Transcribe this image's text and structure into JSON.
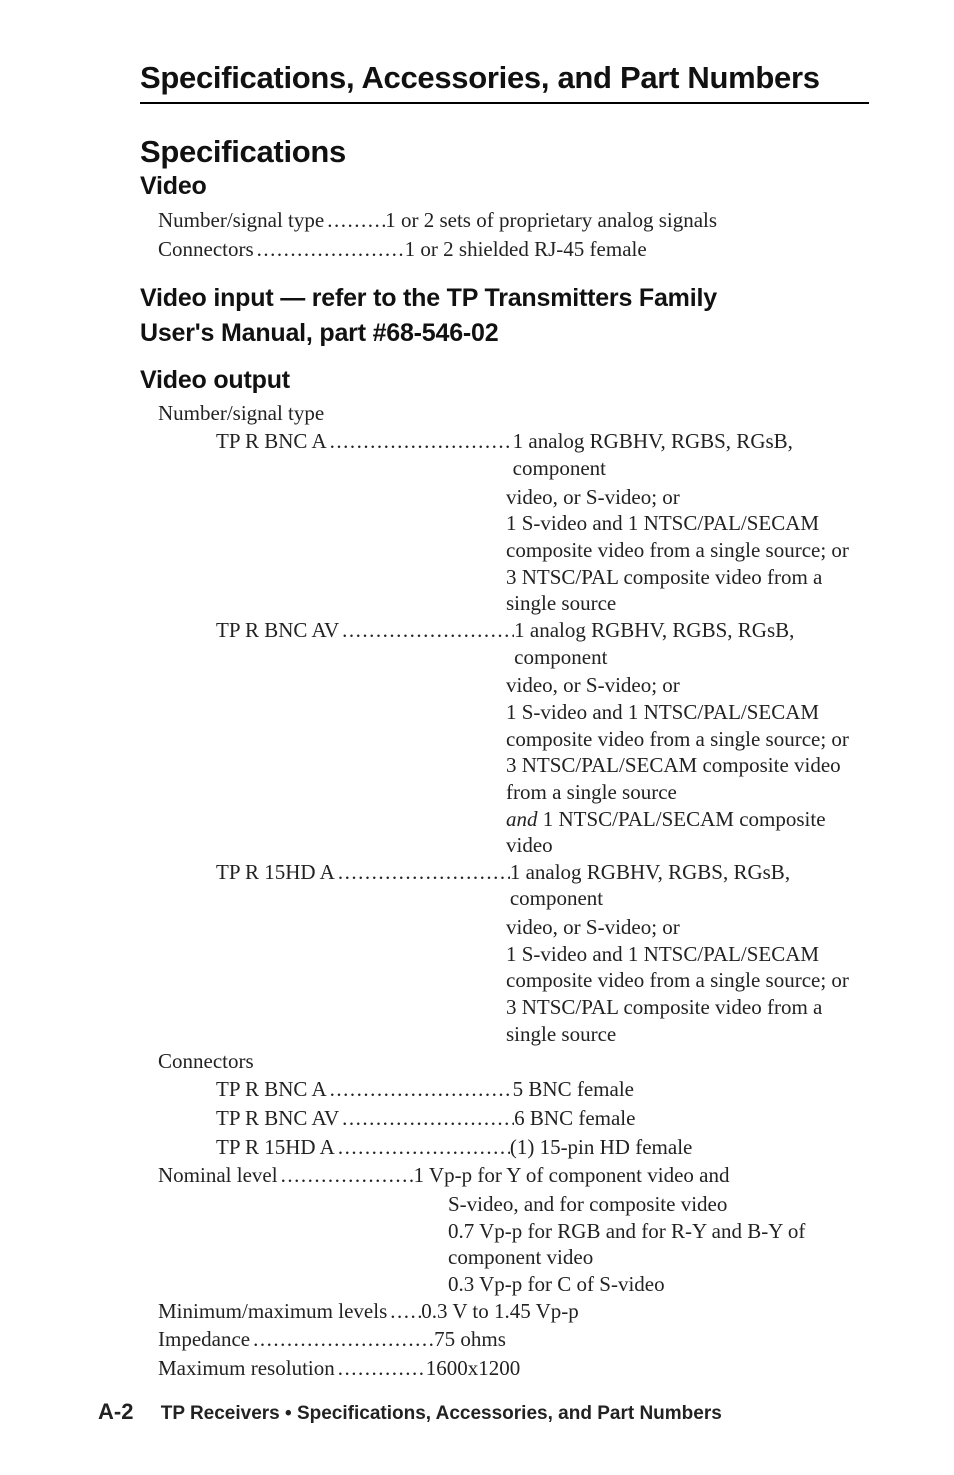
{
  "headings": {
    "top": "Specifications, Accessories, and Part Numbers",
    "spec": "Specifications",
    "video": "Video",
    "videoInputLine1": "Video input — refer to the TP Transmitters Family",
    "videoInputLine2": "User's Manual, part #68-546-02",
    "videoOutput": "Video output"
  },
  "videoRows": {
    "numberSignal": {
      "label": "Number/signal type",
      "value": "1 or 2 sets of proprietary analog signals"
    },
    "connectors": {
      "label": "Connectors",
      "value": "1 or 2 shielded RJ-45 female"
    }
  },
  "videoOutput": {
    "numberSignalHead": "Number/signal type",
    "items": [
      {
        "label": "TP R BNC A",
        "lines": [
          "1 analog RGBHV, RGBS, RGsB, component",
          "video, or S-video; or",
          "1 S-video and 1 NTSC/PAL/SECAM",
          "composite video from a single source; or",
          "3 NTSC/PAL composite video from a",
          "single source"
        ]
      },
      {
        "label": "TP R BNC AV",
        "lines": [
          "1 analog RGBHV, RGBS, RGsB, component",
          "video, or S-video; or",
          "1 S-video and 1 NTSC/PAL/SECAM",
          "composite video from a single source; or",
          "3 NTSC/PAL/SECAM composite video",
          "from a single source",
          "and 1 NTSC/PAL/SECAM composite",
          "video"
        ],
        "italicWord": "and"
      },
      {
        "label": "TP R 15HD A",
        "lines": [
          "1 analog RGBHV, RGBS, RGsB, component",
          "video, or S-video; or",
          "1 S-video and 1 NTSC/PAL/SECAM",
          "composite video from a single source; or",
          "3 NTSC/PAL composite video from a",
          "single source"
        ]
      }
    ],
    "connectorsHead": "Connectors",
    "connectors": [
      {
        "label": "TP R BNC A",
        "value": "5 BNC female"
      },
      {
        "label": "TP R BNC AV",
        "value": "6 BNC female"
      },
      {
        "label": "TP R 15HD A",
        "value": "(1) 15-pin HD female"
      }
    ],
    "nominal": {
      "label": "Nominal level",
      "lines": [
        "1 Vp-p for Y of component video and",
        "S-video, and for composite video",
        "0.7 Vp-p for RGB and for R-Y and B-Y of",
        "component video",
        "0.3 Vp-p for C of S-video"
      ]
    },
    "minmax": {
      "label": "Minimum/maximum levels",
      "value": "0.3 V to 1.45 Vp-p"
    },
    "impedance": {
      "label": "Impedance",
      "value": "75 ohms"
    },
    "maxres": {
      "label": "Maximum resolution",
      "value": "1600x1200"
    }
  },
  "footer": {
    "page": "A-2",
    "bold": "TP Receivers • Specifications, Accessories, and Part Numbers"
  }
}
